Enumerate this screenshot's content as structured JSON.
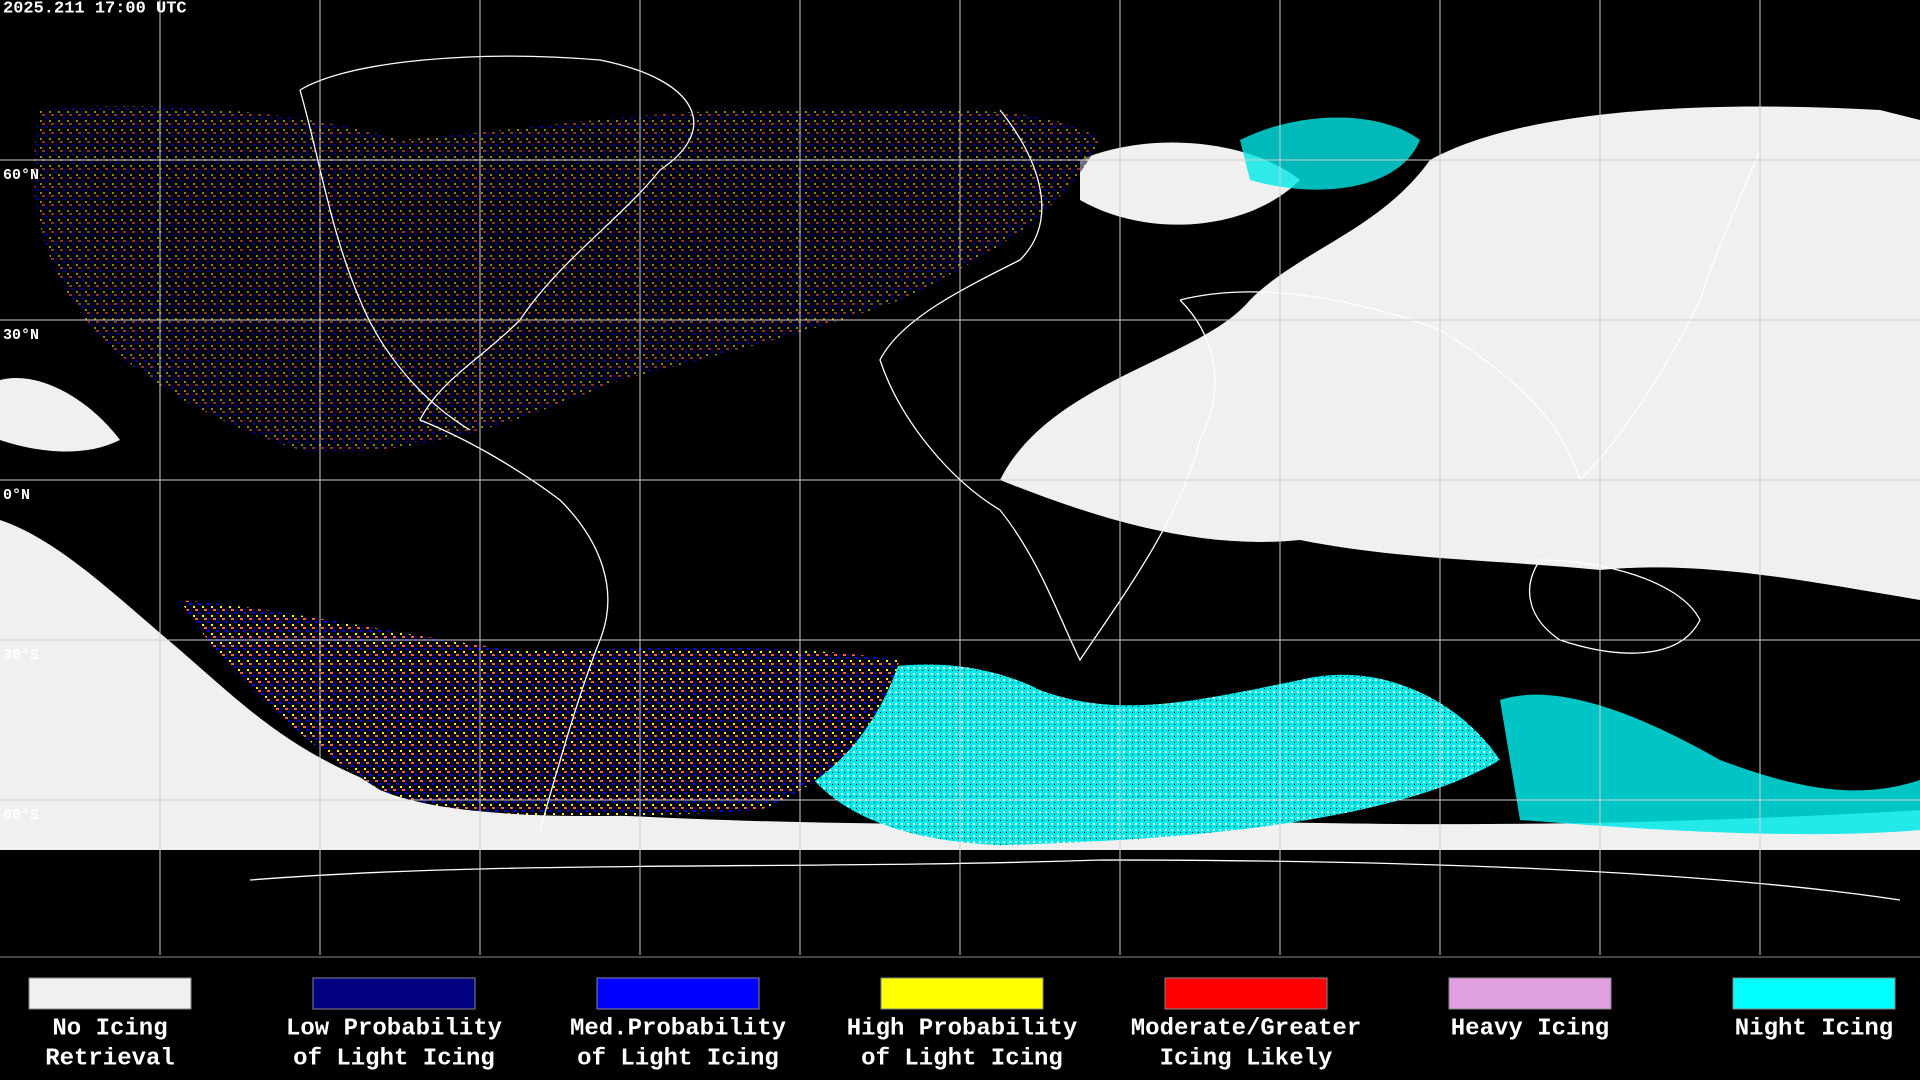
{
  "header": {
    "timestamp": "2025.211 17:00 UTC"
  },
  "map": {
    "latitude_labels": [
      "60°N",
      "30°N",
      "0°N",
      "30°S",
      "60°S"
    ]
  },
  "legend": {
    "items": [
      {
        "label_lines": [
          "No Icing",
          "Retrieval"
        ],
        "color": "#f0f0f0"
      },
      {
        "label_lines": [
          "Low Probability",
          "of Light Icing"
        ],
        "color": "#000080"
      },
      {
        "label_lines": [
          "Med.Probability",
          "of Light Icing"
        ],
        "color": "#0000ff"
      },
      {
        "label_lines": [
          "High Probability",
          "of Light Icing"
        ],
        "color": "#ffff00"
      },
      {
        "label_lines": [
          "Moderate/Greater",
          "Icing Likely"
        ],
        "color": "#ff0000"
      },
      {
        "label_lines": [
          "Heavy Icing"
        ],
        "color": "#e0a0e0"
      },
      {
        "label_lines": [
          "Night Icing"
        ],
        "color": "#00ffff"
      }
    ]
  }
}
